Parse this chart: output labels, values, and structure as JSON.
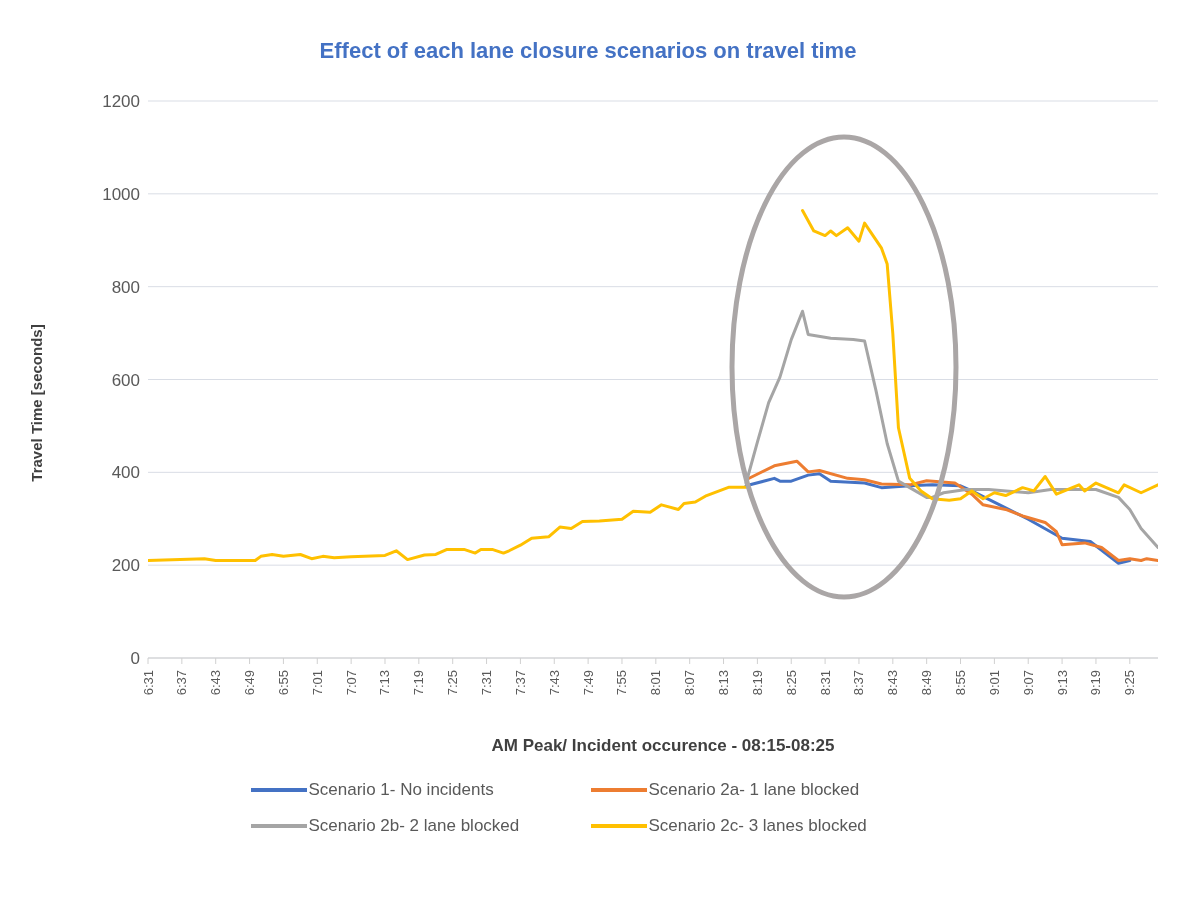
{
  "chart_data": {
    "type": "line",
    "title": "Effect of each lane closure scenarios on travel time",
    "xlabel": "AM Peak/ Incident  occurence - 08:15-08:25",
    "ylabel": "Travel Time [seconds]",
    "xlim": [
      6.5167,
      9.5
    ],
    "ylim": [
      0,
      1200
    ],
    "yticks": [
      0,
      200,
      400,
      600,
      800,
      1000,
      1200
    ],
    "xticks": [
      {
        "value": 6.5167,
        "label": "6:31"
      },
      {
        "value": 6.6167,
        "label": "6:37"
      },
      {
        "value": 6.7167,
        "label": "6:43"
      },
      {
        "value": 6.8167,
        "label": "6:49"
      },
      {
        "value": 6.9167,
        "label": "6:55"
      },
      {
        "value": 7.0167,
        "label": "7:01"
      },
      {
        "value": 7.1167,
        "label": "7:07"
      },
      {
        "value": 7.2167,
        "label": "7:13"
      },
      {
        "value": 7.3167,
        "label": "7:19"
      },
      {
        "value": 7.4167,
        "label": "7:25"
      },
      {
        "value": 7.5167,
        "label": "7:31"
      },
      {
        "value": 7.6167,
        "label": "7:37"
      },
      {
        "value": 7.7167,
        "label": "7:43"
      },
      {
        "value": 7.8167,
        "label": "7:49"
      },
      {
        "value": 7.9167,
        "label": "7:55"
      },
      {
        "value": 8.0167,
        "label": "8:01"
      },
      {
        "value": 8.1167,
        "label": "8:07"
      },
      {
        "value": 8.2167,
        "label": "8:13"
      },
      {
        "value": 8.3167,
        "label": "8:19"
      },
      {
        "value": 8.4167,
        "label": "8:25"
      },
      {
        "value": 8.5167,
        "label": "8:31"
      },
      {
        "value": 8.6167,
        "label": "8:37"
      },
      {
        "value": 8.7167,
        "label": "8:43"
      },
      {
        "value": 8.8167,
        "label": "8:49"
      },
      {
        "value": 8.9167,
        "label": "8:55"
      },
      {
        "value": 9.0167,
        "label": "9:01"
      },
      {
        "value": 9.1167,
        "label": "9:07"
      },
      {
        "value": 9.2167,
        "label": "9:13"
      },
      {
        "value": 9.3167,
        "label": "9:19"
      },
      {
        "value": 9.4167,
        "label": "9:25"
      }
    ],
    "grid": "y",
    "legend": "bottom",
    "marker": "none",
    "line_style": "solid",
    "series": [
      {
        "name": "Scenario 1- No incidents",
        "color": "#4472c4",
        "x": [
          8.2833,
          8.3667,
          8.3833,
          8.4167,
          8.4667,
          8.5,
          8.5333,
          8.6333,
          8.6833,
          8.7667,
          8.8333,
          8.9167,
          8.95,
          9.1167,
          9.2167,
          9.3,
          9.3833,
          9.4167
        ],
        "values": [
          371,
          387,
          381,
          381,
          394,
          397,
          381,
          377,
          367,
          371,
          373,
          371,
          360,
          299,
          258,
          251,
          204,
          210
        ]
      },
      {
        "name": "Scenario 2a- 1 lane blocked",
        "color": "#ed7d31",
        "x": [
          8.2833,
          8.3667,
          8.4333,
          8.4667,
          8.5,
          8.5833,
          8.6333,
          8.6833,
          8.7667,
          8.8167,
          8.9,
          8.95,
          8.9833,
          9.05,
          9.1,
          9.1667,
          9.2,
          9.2167,
          9.2833,
          9.3333,
          9.3833,
          9.4167,
          9.45,
          9.4667,
          9.5
        ],
        "values": [
          384,
          414,
          424,
          401,
          404,
          387,
          384,
          375,
          373,
          382,
          377,
          353,
          330,
          320,
          306,
          292,
          272,
          244,
          248,
          238,
          210,
          214,
          210,
          214,
          210
        ]
      },
      {
        "name": "Scenario 2b- 2 lane blocked",
        "color": "#a5a5a5",
        "x": [
          8.2833,
          8.3167,
          8.35,
          8.3833,
          8.4167,
          8.45,
          8.4667,
          8.5333,
          8.6,
          8.6333,
          8.6667,
          8.7,
          8.7333,
          8.7667,
          8.8167,
          8.8333,
          8.8667,
          8.9333,
          9.0,
          9.1167,
          9.1833,
          9.3167,
          9.3833,
          9.4167,
          9.45,
          9.5
        ],
        "values": [
          377,
          465,
          550,
          605,
          686,
          747,
          697,
          689,
          686,
          683,
          577,
          462,
          381,
          367,
          346,
          346,
          356,
          363,
          363,
          356,
          363,
          363,
          346,
          320,
          279,
          238
        ]
      },
      {
        "name": "Scenario 2c- 3 lanes blocked",
        "color": "#ffc000",
        "x": [
          6.5167,
          6.6833,
          6.7167,
          6.8333,
          6.85,
          6.8833,
          6.9167,
          6.9667,
          7.0,
          7.0333,
          7.0667,
          7.1167,
          7.2167,
          7.25,
          7.2833,
          7.3333,
          7.3667,
          7.4,
          7.45,
          7.4833,
          7.5,
          7.5333,
          7.5667,
          7.5833,
          7.6167,
          7.65,
          7.7,
          7.7333,
          7.7667,
          7.8,
          7.85,
          7.9167,
          7.95,
          8.0,
          8.0333,
          8.0833,
          8.1,
          8.1333,
          8.1667,
          8.2,
          8.2333,
          8.2833,
          8.3,
          8.45,
          8.4833,
          8.5167,
          8.5333,
          8.55,
          8.5833,
          8.6167,
          8.6333,
          8.6833,
          8.7,
          8.7167,
          8.7333,
          8.7667,
          8.8,
          8.8333,
          8.8833,
          8.9167,
          8.95,
          8.9833,
          9.0167,
          9.05,
          9.1,
          9.1333,
          9.1667,
          9.2,
          9.2667,
          9.2833,
          9.3167,
          9.3833,
          9.4,
          9.45,
          9.5
        ],
        "values": [
          210,
          214,
          210,
          210,
          219,
          223,
          219,
          223,
          214,
          219,
          216,
          218,
          221,
          231,
          212,
          222,
          223,
          234,
          234,
          226,
          234,
          234,
          226,
          231,
          243,
          258,
          261,
          282,
          279,
          294,
          295,
          299,
          316,
          314,
          330,
          320,
          333,
          336,
          350,
          359,
          368,
          368,
          null,
          964,
          920,
          910,
          920,
          910,
          927,
          898,
          937,
          883,
          849,
          699,
          496,
          387,
          360,
          343,
          340,
          343,
          360,
          343,
          356,
          350,
          367,
          360,
          391,
          353,
          373,
          360,
          377,
          356,
          373,
          356,
          373
        ]
      }
    ]
  }
}
